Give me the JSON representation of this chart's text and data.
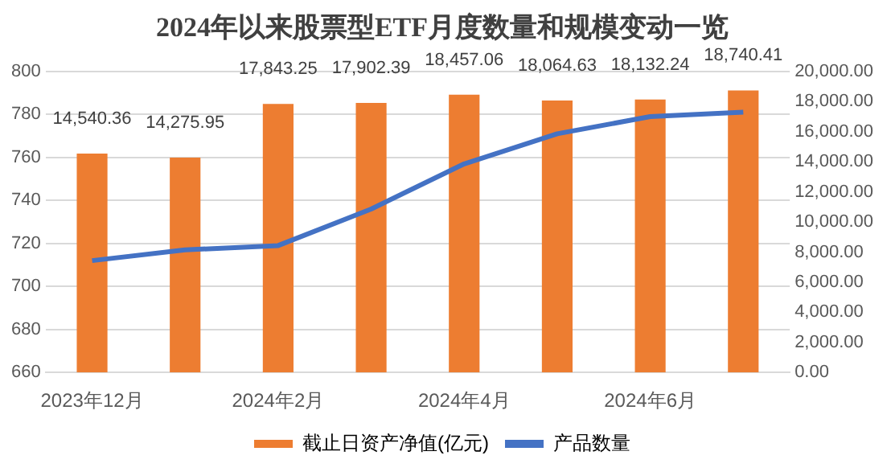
{
  "chart_data": {
    "type": "bar",
    "title": "2024年以来股票型ETF月度数量和规模变动一览",
    "categories": [
      "2023年12月",
      null,
      "2024年2月",
      null,
      "2024年4月",
      null,
      "2024年6月",
      null
    ],
    "series": [
      {
        "name": "截止日资产净值(亿元)",
        "axis": "y2",
        "color": "#ed7d31",
        "values": [
          14540.36,
          14275.95,
          17843.25,
          17902.39,
          18457.06,
          18064.63,
          18132.24,
          18740.41
        ],
        "value_labels": [
          "14,540.36",
          "14,275.95",
          "17,843.25",
          "17,902.39",
          "18,457.06",
          "18,064.63",
          "18,132.24",
          "18,740.41"
        ]
      },
      {
        "name": "产品数量",
        "type": "line",
        "color": "#4472c4",
        "values": [
          712,
          717,
          719,
          736,
          757,
          771,
          779,
          781
        ]
      }
    ],
    "ylim": [
      660,
      800
    ],
    "yticks": [
      660,
      680,
      700,
      720,
      740,
      760,
      780,
      800
    ],
    "y2lim": [
      0,
      20000
    ],
    "y2ticks": [
      {
        "value": 0,
        "label": "0.00"
      },
      {
        "value": 2000,
        "label": "2,000.00"
      },
      {
        "value": 4000,
        "label": "4,000.00"
      },
      {
        "value": 6000,
        "label": "6,000.00"
      },
      {
        "value": 8000,
        "label": "8,000.00"
      },
      {
        "value": 10000,
        "label": "10,000.00"
      },
      {
        "value": 12000,
        "label": "12,000.00"
      },
      {
        "value": 14000,
        "label": "14,000.00"
      },
      {
        "value": 16000,
        "label": "16,000.00"
      },
      {
        "value": 18000,
        "label": "18,000.00"
      },
      {
        "value": 20000,
        "label": "20,000.00"
      }
    ],
    "grid": "y",
    "legend": "bottom",
    "marker": "none"
  }
}
